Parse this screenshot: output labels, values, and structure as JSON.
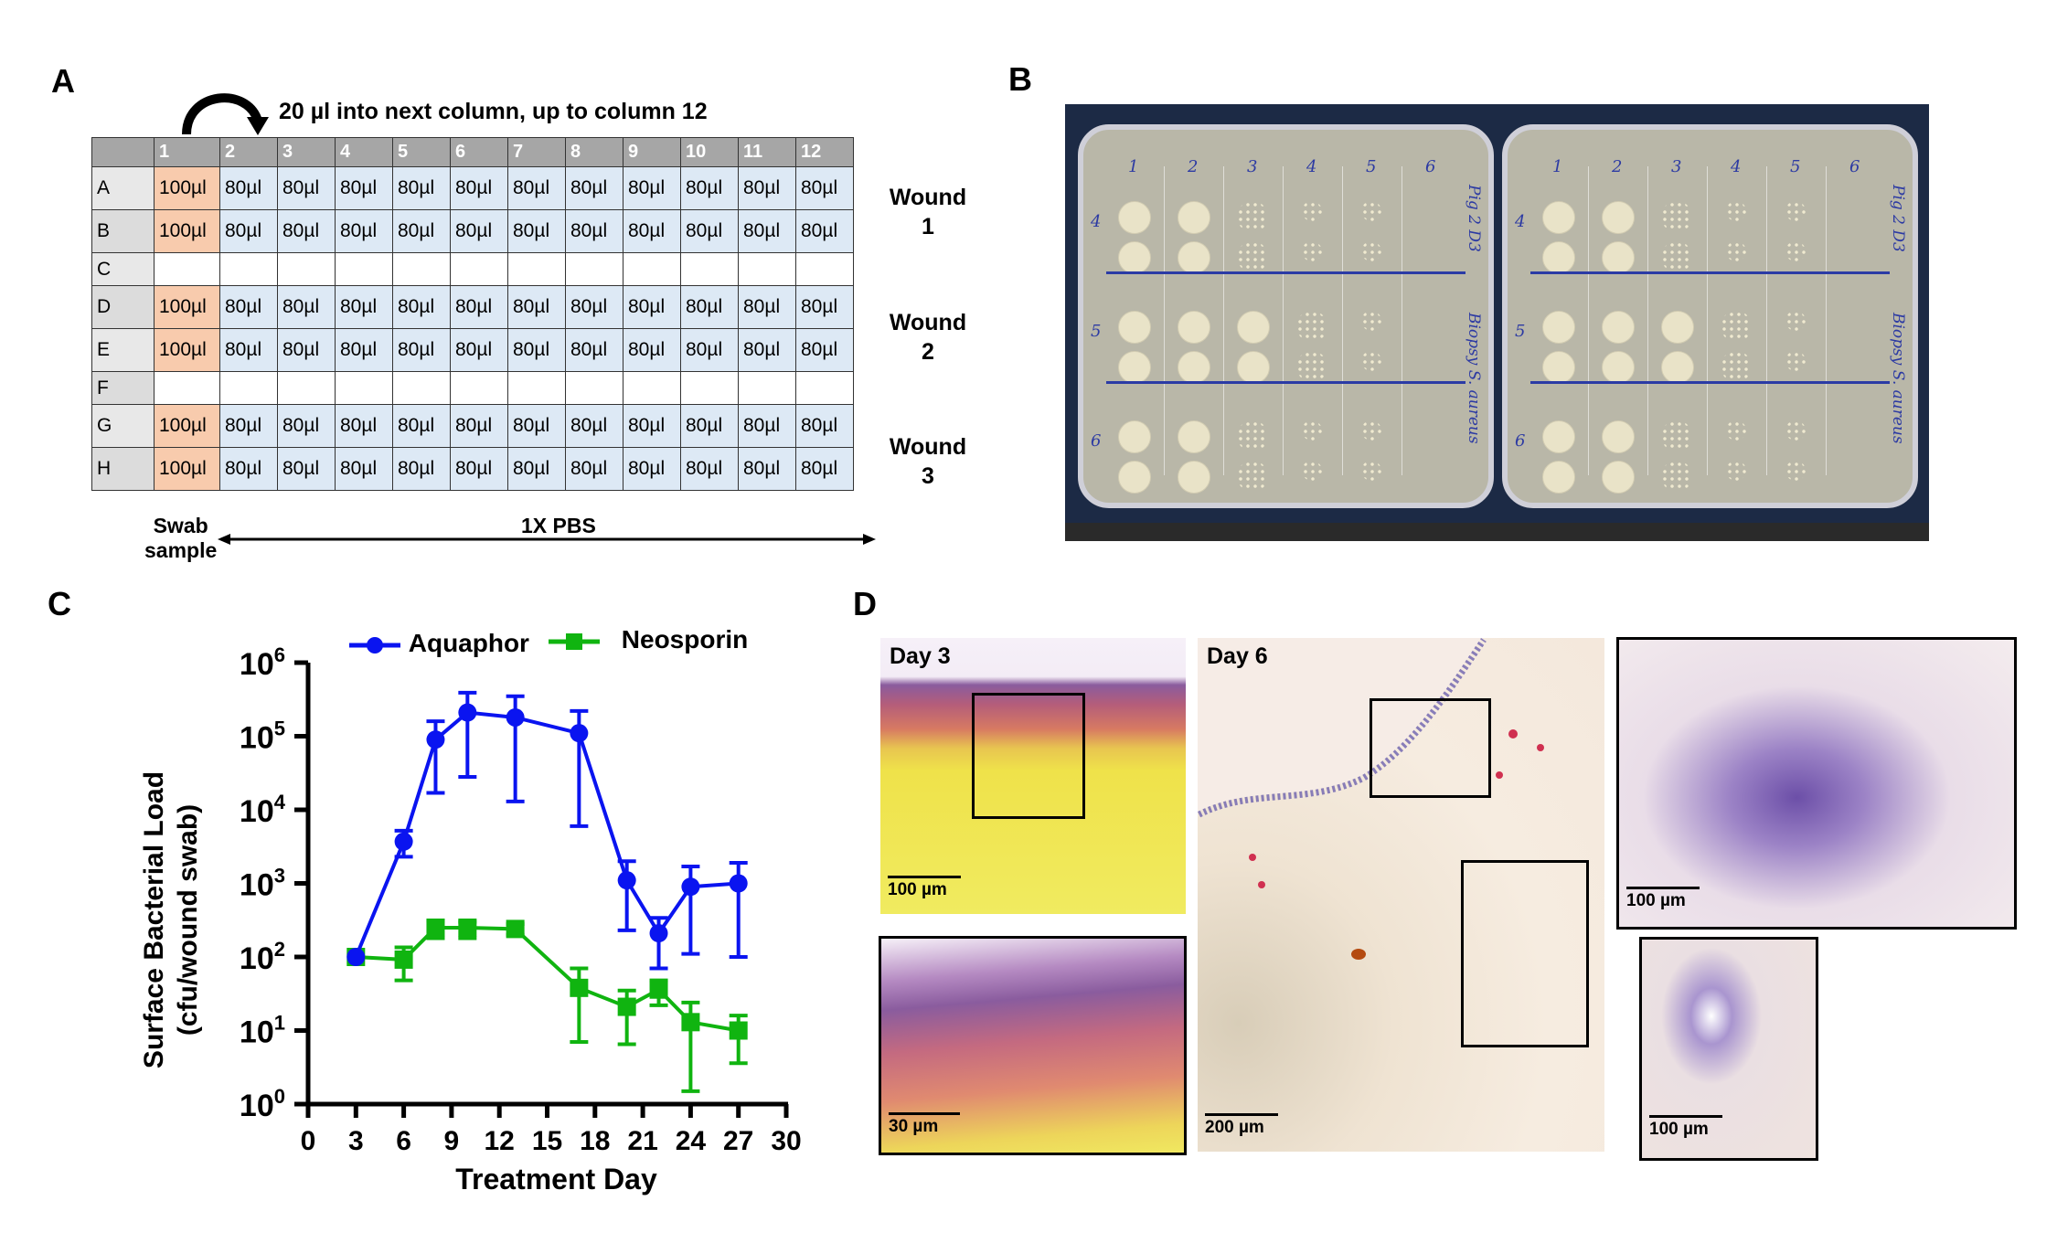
{
  "panels": {
    "a": "A",
    "b": "B",
    "c": "C",
    "d": "D"
  },
  "panel_a": {
    "instruction": "20 µl into next column, up to column 12",
    "columns": [
      "",
      "1",
      "2",
      "3",
      "4",
      "5",
      "6",
      "7",
      "8",
      "9",
      "10",
      "11",
      "12"
    ],
    "rows": [
      {
        "label": "A",
        "filled": true
      },
      {
        "label": "B",
        "filled": true
      },
      {
        "label": "C",
        "filled": false
      },
      {
        "label": "D",
        "filled": true
      },
      {
        "label": "E",
        "filled": true
      },
      {
        "label": "F",
        "filled": false
      },
      {
        "label": "G",
        "filled": true
      },
      {
        "label": "H",
        "filled": true
      }
    ],
    "swab_volume": "100µl",
    "pbs_volume": "80µl",
    "wounds": [
      {
        "line1": "Wound",
        "line2": "1"
      },
      {
        "line1": "Wound",
        "line2": "2"
      },
      {
        "line1": "Wound",
        "line2": "3"
      }
    ],
    "swab_label": {
      "line1": "Swab",
      "line2": "sample"
    },
    "pbs_label": "1X PBS",
    "colors": {
      "swab": "#f8cbad",
      "pbs": "#dde9f5",
      "header": "#a6a6a6"
    }
  },
  "panel_b": {
    "plates": [
      {
        "columns": [
          "1",
          "2",
          "3",
          "4",
          "5",
          "6"
        ],
        "rows": [
          "4",
          "5",
          "6"
        ],
        "side_text_top": "Pig 2 D3",
        "side_text_bottom": "Biopsy S. aureus"
      },
      {
        "columns": [
          "1",
          "2",
          "3",
          "4",
          "5",
          "6"
        ],
        "rows": [
          "4",
          "5",
          "6"
        ],
        "side_text_top": "Pig 2 D3",
        "side_text_bottom": "Biopsy S. aureus"
      }
    ]
  },
  "chart_data": {
    "type": "line",
    "title": "",
    "xlabel": "Treatment Day",
    "ylabel": "Surface Bacterial Load (cfu/wound swab)",
    "ylabel_line1": "Surface Bacterial Load",
    "ylabel_line2": "(cfu/wound swab)",
    "yscale": "log",
    "xlim": [
      0,
      30
    ],
    "ylim": [
      1,
      1000000
    ],
    "xticks": [
      0,
      3,
      6,
      9,
      12,
      15,
      18,
      21,
      24,
      27,
      30
    ],
    "xtick_labels": [
      "0",
      "3",
      "6",
      "9",
      "12",
      "15",
      "18",
      "21",
      "24",
      "27",
      "30"
    ],
    "yticks": [
      1,
      10,
      100,
      1000,
      10000,
      100000,
      1000000
    ],
    "ytick_exponents": [
      "0",
      "1",
      "2",
      "3",
      "4",
      "5",
      "6"
    ],
    "ytick_base": "10",
    "grid": false,
    "legend_position": "top",
    "series": [
      {
        "name": "Aquaphor",
        "color": "#0a14f0",
        "marker": "circle",
        "x": [
          3,
          6,
          8,
          10,
          13,
          17,
          20,
          22,
          24,
          27
        ],
        "y": [
          100,
          3700,
          90000,
          210000,
          180000,
          110000,
          1100,
          210,
          900,
          1000
        ],
        "err_low": [
          100,
          2300,
          17000,
          28000,
          13000,
          6000,
          230,
          70,
          110,
          100
        ],
        "err_high": [
          100,
          5200,
          160000,
          390000,
          350000,
          220000,
          2000,
          340,
          1700,
          1900
        ]
      },
      {
        "name": "Neosporin",
        "color": "#10b410",
        "marker": "square",
        "x": [
          3,
          6,
          8,
          10,
          13,
          17,
          20,
          22,
          24,
          27
        ],
        "y": [
          100,
          92,
          250,
          250,
          240,
          38,
          21,
          36,
          13,
          10
        ],
        "err_low": [
          100,
          48,
          180,
          180,
          200,
          7,
          6.5,
          22,
          1.5,
          3.6
        ],
        "err_high": [
          100,
          135,
          310,
          300,
          280,
          70,
          35,
          48,
          24,
          16
        ]
      }
    ]
  },
  "panel_d": {
    "day3_label": "Day 3",
    "day6_label": "Day 6",
    "scale_day3": "100 µm",
    "scale_day3_zoom": "30 µm",
    "scale_day6": "200 µm",
    "scale_day6_zoom1": "100 µm",
    "scale_day6_zoom2": "100 µm"
  }
}
